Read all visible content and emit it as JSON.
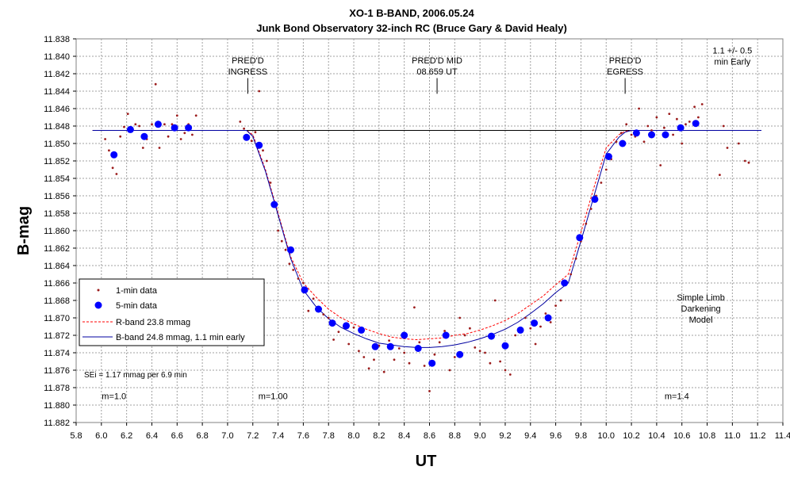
{
  "chart_data": {
    "type": "scatter",
    "title": "XO-1 B-BAND, 2006.05.24",
    "subtitle": "Junk Bond Observatory 32-inch RC (Bruce Gary & David Healy)",
    "xlabel": "UT",
    "ylabel": "B-mag",
    "xlim": [
      5.8,
      11.4
    ],
    "ylim": [
      11.838,
      11.882
    ],
    "y_inverted": true,
    "x_ticks": [
      "5.8",
      "6.0",
      "6.2",
      "6.4",
      "6.6",
      "6.8",
      "7.0",
      "7.2",
      "7.4",
      "7.6",
      "7.8",
      "8.0",
      "8.2",
      "8.4",
      "8.6",
      "8.8",
      "9.0",
      "9.2",
      "9.4",
      "9.6",
      "9.8",
      "10.0",
      "10.2",
      "10.4",
      "10.6",
      "10.8",
      "11.0",
      "11.2",
      "11.4"
    ],
    "y_ticks": [
      "11.838",
      "11.840",
      "11.842",
      "11.844",
      "11.846",
      "11.848",
      "11.850",
      "11.852",
      "11.854",
      "11.856",
      "11.858",
      "11.860",
      "11.862",
      "11.864",
      "11.866",
      "11.868",
      "11.870",
      "11.872",
      "11.874",
      "11.876",
      "11.878",
      "11.880",
      "11.882"
    ],
    "grid": true,
    "legend_position": "bottom-left",
    "series": [
      {
        "name": "1-min data",
        "color": "#9b1b1b",
        "marker": "small-dot",
        "x": [
          6.03,
          6.06,
          6.09,
          6.12,
          6.15,
          6.18,
          6.21,
          6.24,
          6.27,
          6.3,
          6.33,
          6.36,
          6.4,
          6.43,
          6.46,
          6.5,
          6.53,
          6.56,
          6.6,
          6.63,
          6.66,
          6.69,
          6.72,
          6.75,
          7.1,
          7.13,
          7.16,
          7.19,
          7.22,
          7.25,
          7.28,
          7.31,
          7.34,
          7.37,
          7.4,
          7.43,
          7.46,
          7.49,
          7.52,
          7.56,
          7.6,
          7.64,
          7.68,
          7.72,
          7.76,
          7.8,
          7.84,
          7.88,
          7.92,
          7.96,
          8.0,
          8.04,
          8.08,
          8.12,
          8.16,
          8.2,
          8.24,
          8.28,
          8.32,
          8.36,
          8.4,
          8.44,
          8.48,
          8.52,
          8.56,
          8.6,
          8.64,
          8.68,
          8.72,
          8.76,
          8.8,
          8.84,
          8.88,
          8.92,
          8.96,
          9.0,
          9.04,
          9.08,
          9.12,
          9.16,
          9.2,
          9.24,
          9.28,
          9.32,
          9.36,
          9.4,
          9.44,
          9.48,
          9.52,
          9.56,
          9.6,
          9.64,
          9.68,
          9.72,
          9.76,
          9.8,
          9.84,
          9.88,
          9.92,
          9.96,
          10.0,
          10.04,
          10.08,
          10.12,
          10.16,
          10.2,
          10.23,
          10.26,
          10.3,
          10.33,
          10.36,
          10.4,
          10.43,
          10.46,
          10.5,
          10.53,
          10.56,
          10.6,
          10.63,
          10.66,
          10.7,
          10.73,
          10.76,
          10.9,
          10.93,
          10.96,
          11.05,
          11.1,
          11.13
        ],
        "y": [
          11.8495,
          11.8508,
          11.8528,
          11.8535,
          11.8492,
          11.8481,
          11.8466,
          11.8486,
          11.8478,
          11.848,
          11.8505,
          11.8495,
          11.8478,
          11.8432,
          11.8505,
          11.8478,
          11.8492,
          11.8478,
          11.8468,
          11.8495,
          11.8488,
          11.8478,
          11.849,
          11.8468,
          11.8475,
          11.8483,
          11.8492,
          11.8497,
          11.8487,
          11.844,
          11.8508,
          11.852,
          11.8545,
          11.8572,
          11.86,
          11.8612,
          11.8622,
          11.8638,
          11.8645,
          11.8655,
          11.866,
          11.8692,
          11.8678,
          11.8688,
          11.8696,
          11.87,
          11.8725,
          11.8716,
          11.871,
          11.873,
          11.8711,
          11.8738,
          11.8745,
          11.8758,
          11.8748,
          11.8732,
          11.8762,
          11.8726,
          11.8748,
          11.8735,
          11.874,
          11.8752,
          11.8688,
          11.8728,
          11.8755,
          11.8784,
          11.8742,
          11.8728,
          11.8715,
          11.876,
          11.8745,
          11.87,
          11.872,
          11.8712,
          11.8734,
          11.8738,
          11.874,
          11.8752,
          11.868,
          11.875,
          11.876,
          11.8765,
          11.872,
          11.8715,
          11.87,
          11.8712,
          11.873,
          11.871,
          11.8695,
          11.8705,
          11.8686,
          11.868,
          11.8662,
          11.865,
          11.8632,
          11.8612,
          11.8592,
          11.8575,
          11.856,
          11.8545,
          11.853,
          11.8518,
          11.8498,
          11.8488,
          11.8478,
          11.849,
          11.8492,
          11.846,
          11.8498,
          11.848,
          11.8485,
          11.847,
          11.8525,
          11.8482,
          11.8466,
          11.849,
          11.8472,
          11.85,
          11.8478,
          11.8475,
          11.8458,
          11.847,
          11.8455,
          11.8536,
          11.848,
          11.8505,
          11.85,
          11.852,
          11.8522
        ]
      },
      {
        "name": "5-min data",
        "color": "#0000ff",
        "marker": "large-dot",
        "x": [
          6.1,
          6.23,
          6.34,
          6.45,
          6.58,
          6.69,
          7.15,
          7.25,
          7.37,
          7.5,
          7.61,
          7.72,
          7.83,
          7.94,
          8.06,
          8.17,
          8.29,
          8.4,
          8.51,
          8.62,
          8.73,
          8.84,
          9.09,
          9.2,
          9.32,
          9.43,
          9.54,
          9.67,
          9.79,
          9.91,
          10.02,
          10.13,
          10.24,
          10.36,
          10.47,
          10.59,
          10.71
        ],
        "y": [
          11.8513,
          11.8484,
          11.8492,
          11.8478,
          11.8482,
          11.8482,
          11.8493,
          11.8502,
          11.857,
          11.8622,
          11.8668,
          11.869,
          11.8706,
          11.8709,
          11.8714,
          11.8733,
          11.8733,
          11.872,
          11.8735,
          11.8752,
          11.872,
          11.8742,
          11.8721,
          11.8732,
          11.8714,
          11.8706,
          11.87,
          11.866,
          11.8608,
          11.8564,
          11.8515,
          11.85,
          11.8488,
          11.849,
          11.849,
          11.8482,
          11.8477
        ]
      },
      {
        "name": "R-band 23.8 mmag",
        "color": "#ff0000",
        "style": "dashed",
        "x": [
          5.93,
          7.15,
          7.2,
          7.3,
          7.4,
          7.5,
          7.6,
          7.7,
          7.8,
          7.9,
          8.0,
          8.1,
          8.2,
          8.3,
          8.4,
          8.5,
          8.6,
          8.7,
          8.8,
          8.9,
          9.0,
          9.1,
          9.2,
          9.3,
          9.4,
          9.5,
          9.6,
          9.7,
          9.8,
          9.9,
          10.0,
          10.1,
          10.15,
          10.2,
          11.23
        ],
        "y": [
          11.8485,
          11.8485,
          11.849,
          11.853,
          11.858,
          11.863,
          11.866,
          11.8676,
          11.869,
          11.87,
          11.8707,
          11.8713,
          11.8718,
          11.8722,
          11.8724,
          11.8725,
          11.8724,
          11.8723,
          11.872,
          11.8718,
          11.8714,
          11.8709,
          11.8703,
          11.8695,
          11.8685,
          11.8675,
          11.8662,
          11.865,
          11.8602,
          11.8552,
          11.8505,
          11.849,
          11.8486,
          11.8485,
          11.8485
        ]
      },
      {
        "name": "B-band 24.8 mmag, 1.1 min early",
        "color": "#0000a0",
        "style": "solid",
        "x": [
          5.93,
          7.15,
          7.2,
          7.3,
          7.4,
          7.5,
          7.6,
          7.7,
          7.8,
          7.9,
          8.0,
          8.1,
          8.2,
          8.3,
          8.4,
          8.5,
          8.6,
          8.7,
          8.8,
          8.9,
          9.0,
          9.1,
          9.2,
          9.3,
          9.4,
          9.5,
          9.6,
          9.7,
          9.8,
          9.9,
          10.0,
          10.1,
          10.15,
          10.2,
          11.23
        ],
        "y": [
          11.8485,
          11.8485,
          11.8492,
          11.8532,
          11.8582,
          11.8632,
          11.8668,
          11.8687,
          11.8701,
          11.8711,
          11.8718,
          11.8724,
          11.8729,
          11.8731,
          11.8733,
          11.8734,
          11.8734,
          11.8733,
          11.8731,
          11.8728,
          11.8724,
          11.8719,
          11.8713,
          11.8705,
          11.8695,
          11.8684,
          11.8671,
          11.866,
          11.8612,
          11.8562,
          11.8512,
          11.8493,
          11.8487,
          11.8485,
          11.8485
        ]
      }
    ],
    "reference_line": {
      "y": 11.8485,
      "x": [
        5.93,
        11.23
      ],
      "color": "#000000"
    },
    "annotations": [
      {
        "lines": [
          "PRED'D",
          "INGRESS"
        ],
        "x": 7.16,
        "y": 11.8408,
        "marker_y": [
          11.8425,
          11.8443
        ]
      },
      {
        "lines": [
          "PRED'D MID",
          "08.659 UT"
        ],
        "x": 8.66,
        "y": 11.8408,
        "marker_y": [
          11.8425,
          11.8443
        ]
      },
      {
        "lines": [
          "PRED'D",
          "EGRESS"
        ],
        "x": 10.15,
        "y": 11.8408,
        "marker_y": [
          11.8425,
          11.8443
        ]
      },
      {
        "lines": [
          "1.1 +/- 0.5",
          "min Early"
        ],
        "x": 11.0,
        "y": 11.8397
      },
      {
        "lines": [
          "Simple Limb",
          "Darkening",
          "Model"
        ],
        "x": 10.75,
        "y": 11.868
      },
      {
        "lines": [
          "m=1.0"
        ],
        "x": 6.1,
        "y": 11.8793
      },
      {
        "lines": [
          "m=1.00"
        ],
        "x": 7.36,
        "y": 11.8793
      },
      {
        "lines": [
          "m=1.4"
        ],
        "x": 10.56,
        "y": 11.8793
      }
    ],
    "note": "SEi = 1.17 mmag per 6.9 min"
  }
}
